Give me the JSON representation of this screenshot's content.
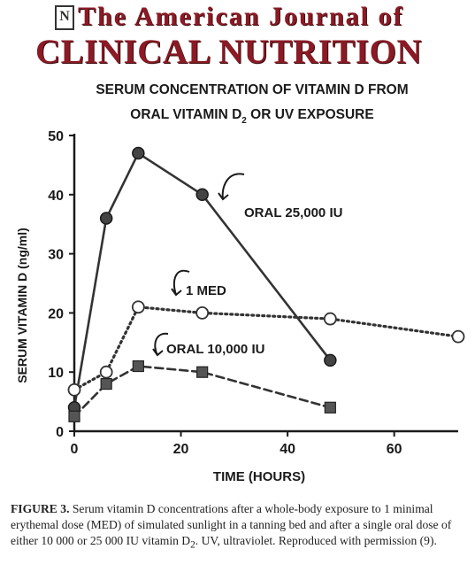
{
  "journal": {
    "line1": "The American Journal of",
    "line2": "CLINICAL NUTRITION",
    "logo_glyph": "N"
  },
  "chart_data": {
    "type": "line",
    "title_line1": "SERUM CONCENTRATION OF VITAMIN D FROM",
    "title_line2_pre": "ORAL VITAMIN D",
    "title_line2_sub": "2",
    "title_line2_post": " OR UV EXPOSURE",
    "xlabel": "TIME (HOURS)",
    "ylabel": "SERUM VITAMIN D (ng/ml)",
    "xlim": [
      0,
      72
    ],
    "ylim": [
      0,
      50
    ],
    "xticks": [
      0,
      20,
      40,
      60
    ],
    "yticks": [
      0,
      10,
      20,
      30,
      40,
      50
    ],
    "grid": false,
    "series": [
      {
        "name": "ORAL 25,000 IU",
        "line": "solid",
        "marker": "filled-circle",
        "color": "#333333",
        "x": [
          0,
          6,
          12,
          24,
          48
        ],
        "y": [
          4,
          36,
          47,
          40,
          12
        ]
      },
      {
        "name": "1 MED",
        "line": "dotted",
        "marker": "open-circle",
        "color": "#333333",
        "x": [
          0,
          6,
          12,
          24,
          48,
          72
        ],
        "y": [
          7,
          10,
          21,
          20,
          19,
          16
        ]
      },
      {
        "name": "ORAL 10,000 IU",
        "line": "dashed",
        "marker": "filled-square",
        "color": "#333333",
        "x": [
          0,
          6,
          12,
          24,
          48
        ],
        "y": [
          2.5,
          8,
          11,
          10,
          4
        ]
      }
    ]
  },
  "caption": {
    "label": "FIGURE 3.",
    "text_pre": " Serum vitamin D concentrations after a whole-body exposure to 1 minimal erythemal dose (MED) of simulated sunlight in a tanning bed and after a single oral dose of either 10 000 or 25 000 IU vitamin D",
    "sub": "2",
    "text_post": ". UV, ultraviolet. Reproduced with permission (9)."
  }
}
